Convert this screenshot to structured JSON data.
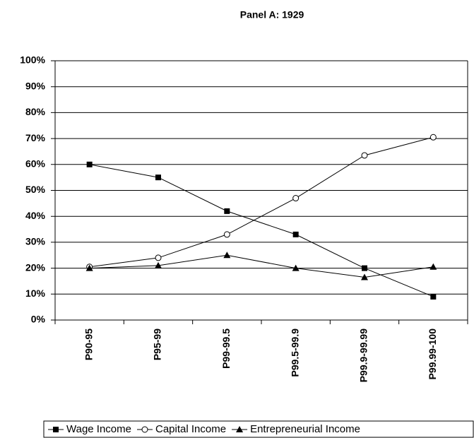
{
  "chart_data": {
    "type": "line",
    "title": "Panel A: 1929",
    "categories": [
      "P90-95",
      "P95-99",
      "P99-99.5",
      "P99.5-99.9",
      "P99.9-99.99",
      "P99.99-100"
    ],
    "series": [
      {
        "name": "Wage Income",
        "color": "#000000",
        "marker": "square",
        "values": [
          60,
          55,
          42,
          33,
          20,
          9
        ]
      },
      {
        "name": "Capital Income",
        "color": "#000000",
        "marker": "circle",
        "values": [
          20.5,
          24,
          33,
          47,
          63.5,
          70.5
        ]
      },
      {
        "name": "Entrepreneurial Income",
        "color": "#000000",
        "marker": "triangle",
        "values": [
          20,
          21,
          25,
          20,
          16.5,
          20.5
        ]
      }
    ],
    "ylim": [
      0,
      100
    ],
    "yticks": [
      {
        "value": 0,
        "label": "0%"
      },
      {
        "value": 10,
        "label": "10%"
      },
      {
        "value": 20,
        "label": "20%"
      },
      {
        "value": 30,
        "label": "30%"
      },
      {
        "value": 40,
        "label": "40%"
      },
      {
        "value": 50,
        "label": "50%"
      },
      {
        "value": 60,
        "label": "60%"
      },
      {
        "value": 70,
        "label": "70%"
      },
      {
        "value": 80,
        "label": "80%"
      },
      {
        "value": 90,
        "label": "90%"
      },
      {
        "value": 100,
        "label": "100%"
      }
    ],
    "grid": true,
    "legend": "bottom"
  }
}
